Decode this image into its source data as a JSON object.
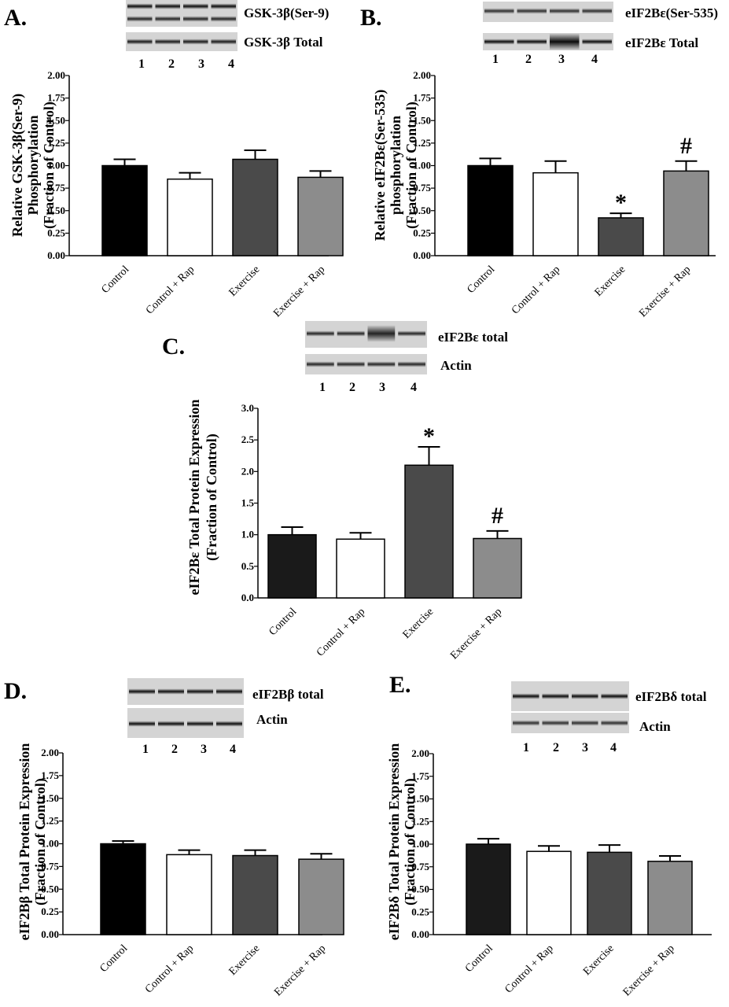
{
  "chart_data": [
    {
      "panel": "A.",
      "type": "bar",
      "categories": [
        "Control",
        "Control + Rap",
        "Exercise",
        "Exercise + Rap"
      ],
      "values": [
        1.0,
        0.85,
        1.07,
        0.87
      ],
      "errors": [
        0.07,
        0.07,
        0.1,
        0.07
      ],
      "bar_colors": [
        "#000000",
        "#ffffff",
        "#4a4a4a",
        "#8c8c8c"
      ],
      "ylabel": [
        "Relative GSK-3β(Ser-9)",
        "Phosphorylation",
        "(Fraction of Control)"
      ],
      "ylim": [
        0,
        2.0
      ],
      "yticks": [
        "0.00",
        "0.25",
        "0.50",
        "0.75",
        "1.00",
        "1.25",
        "1.50",
        "1.75",
        "2.00"
      ],
      "significance": [
        "",
        "",
        "",
        ""
      ],
      "blots": [
        "GSK-3β(Ser-9)",
        "GSK-3β Total"
      ],
      "lanes": [
        "1",
        "2",
        "3",
        "4"
      ]
    },
    {
      "panel": "B.",
      "type": "bar",
      "categories": [
        "Control",
        "Control + Rap",
        "Exercise",
        "Exercise + Rap"
      ],
      "values": [
        1.0,
        0.92,
        0.42,
        0.94
      ],
      "errors": [
        0.08,
        0.13,
        0.05,
        0.11
      ],
      "bar_colors": [
        "#000000",
        "#ffffff",
        "#4a4a4a",
        "#8c8c8c"
      ],
      "ylabel": [
        "Relative eIF2Bε(Ser-535)",
        "phosphorylation",
        "(Fraction of Control)"
      ],
      "ylim": [
        0,
        2.0
      ],
      "yticks": [
        "0.00",
        "0.25",
        "0.50",
        "0.75",
        "1.00",
        "1.25",
        "1.50",
        "1.75",
        "2.00"
      ],
      "significance": [
        "",
        "",
        "*",
        "#"
      ],
      "blots": [
        "eIF2Bε(Ser-535)",
        "eIF2Bε Total"
      ],
      "lanes": [
        "1",
        "2",
        "3",
        "4"
      ]
    },
    {
      "panel": "C.",
      "type": "bar",
      "categories": [
        "Control",
        "Control + Rap",
        "Exercise",
        "Exercise + Rap"
      ],
      "values": [
        1.0,
        0.93,
        2.1,
        0.94
      ],
      "errors": [
        0.12,
        0.1,
        0.29,
        0.12
      ],
      "bar_colors": [
        "#1a1a1a",
        "#ffffff",
        "#4a4a4a",
        "#8c8c8c"
      ],
      "ylabel": [
        "eIF2Bε Total Protein Expression",
        "(Fraction of Control)"
      ],
      "ylim": [
        0,
        3.0
      ],
      "yticks": [
        "0.0",
        "0.5",
        "1.0",
        "1.5",
        "2.0",
        "2.5",
        "3.0"
      ],
      "significance": [
        "",
        "",
        "*",
        "#"
      ],
      "blots": [
        "eIF2Bε total",
        "Actin"
      ],
      "lanes": [
        "1",
        "2",
        "3",
        "4"
      ]
    },
    {
      "panel": "D.",
      "type": "bar",
      "categories": [
        "Control",
        "Control + Rap",
        "Exercise",
        "Exercise + Rap"
      ],
      "values": [
        1.0,
        0.88,
        0.87,
        0.83
      ],
      "errors": [
        0.03,
        0.05,
        0.06,
        0.06
      ],
      "bar_colors": [
        "#000000",
        "#ffffff",
        "#4a4a4a",
        "#8c8c8c"
      ],
      "ylabel": [
        "eIF2Bβ Total Protein Expression",
        "(Fraction of Control)"
      ],
      "ylim": [
        0,
        2.0
      ],
      "yticks": [
        "0.00",
        "0.25",
        "0.50",
        "0.75",
        "1.00",
        "1.25",
        "1.50",
        "1.75",
        "2.00"
      ],
      "significance": [
        "",
        "",
        "",
        ""
      ],
      "blots": [
        "eIF2Bβ total",
        "Actin"
      ],
      "lanes": [
        "1",
        "2",
        "3",
        "4"
      ]
    },
    {
      "panel": "E.",
      "type": "bar",
      "categories": [
        "Control",
        "Control + Rap",
        "Exercise",
        "Exercise + Rap"
      ],
      "values": [
        1.0,
        0.92,
        0.91,
        0.81
      ],
      "errors": [
        0.06,
        0.06,
        0.08,
        0.06
      ],
      "bar_colors": [
        "#1a1a1a",
        "#ffffff",
        "#4a4a4a",
        "#8c8c8c"
      ],
      "ylabel": [
        "eIF2Bδ Total Protein Expression",
        "(Fraction of Control)"
      ],
      "ylim": [
        0,
        2.0
      ],
      "yticks": [
        "0.00",
        "0.25",
        "0.50",
        "0.75",
        "1.00",
        "1.25",
        "1.50",
        "1.75",
        "2.00"
      ],
      "significance": [
        "",
        "",
        "",
        ""
      ],
      "blots": [
        "eIF2Bδ total",
        "Actin"
      ],
      "lanes": [
        "1",
        "2",
        "3",
        "4"
      ]
    }
  ]
}
